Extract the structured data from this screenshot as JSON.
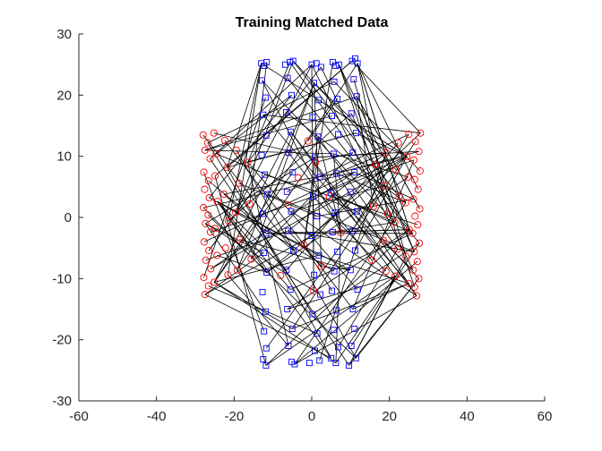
{
  "chart_data": {
    "type": "scatter",
    "title": "Training Matched Data",
    "xlabel": "",
    "ylabel": "",
    "xlim": [
      -60,
      60
    ],
    "ylim": [
      -30,
      30
    ],
    "xticks": [
      -60,
      -40,
      -20,
      0,
      20,
      40,
      60
    ],
    "yticks": [
      -30,
      -20,
      -10,
      0,
      10,
      20,
      30
    ],
    "grid": false,
    "box": "left-bottom axes only",
    "series": [
      {
        "marker": "circle",
        "color": "#ff0000",
        "points": [
          [
            -28,
            13.5
          ],
          [
            -26.8,
            12.2
          ],
          [
            -27.5,
            11.0
          ],
          [
            -26.2,
            9.6
          ],
          [
            -27.8,
            7.4
          ],
          [
            -26.6,
            6.0
          ],
          [
            -27.6,
            4.6
          ],
          [
            -26.4,
            3.2
          ],
          [
            -27.9,
            1.6
          ],
          [
            -26.7,
            0.4
          ],
          [
            -27.4,
            -1.0
          ],
          [
            -26.1,
            -2.4
          ],
          [
            -27.7,
            -4.0
          ],
          [
            -26.5,
            -5.4
          ],
          [
            -27.3,
            -7.0
          ],
          [
            -26.0,
            -8.4
          ],
          [
            -27.8,
            -9.8
          ],
          [
            -26.6,
            -11.2
          ],
          [
            -27.5,
            -12.6
          ],
          [
            -25.2,
            13.8
          ],
          [
            -24.6,
            10.4
          ],
          [
            -24.9,
            6.8
          ],
          [
            -24.3,
            2.6
          ],
          [
            -25.0,
            -1.8
          ],
          [
            -24.4,
            -6.2
          ],
          [
            -25.1,
            -10.6
          ],
          [
            -22.4,
            12.6
          ],
          [
            -21.8,
            8.2
          ],
          [
            -22.6,
            3.8
          ],
          [
            -21.5,
            -0.6
          ],
          [
            -22.2,
            -5.0
          ],
          [
            -21.6,
            -9.4
          ],
          [
            -19.4,
            11.0
          ],
          [
            -18.8,
            5.6
          ],
          [
            -19.6,
            0.8
          ],
          [
            -18.6,
            -3.6
          ],
          [
            -19.2,
            -8.6
          ],
          [
            -16.5,
            9.0
          ],
          [
            -16.0,
            2.2
          ],
          [
            -15.6,
            -6.8
          ],
          [
            28,
            13.8
          ],
          [
            26.7,
            12.4
          ],
          [
            27.6,
            10.8
          ],
          [
            26.3,
            9.4
          ],
          [
            27.9,
            7.6
          ],
          [
            26.5,
            6.2
          ],
          [
            27.4,
            4.6
          ],
          [
            26.2,
            3.0
          ],
          [
            27.8,
            1.4
          ],
          [
            26.6,
            0.2
          ],
          [
            27.3,
            -1.2
          ],
          [
            26.0,
            -2.6
          ],
          [
            27.7,
            -4.2
          ],
          [
            26.4,
            -5.6
          ],
          [
            27.2,
            -7.2
          ],
          [
            26.1,
            -8.6
          ],
          [
            27.6,
            -10.0
          ],
          [
            26.5,
            -11.4
          ],
          [
            27.0,
            -12.8
          ],
          [
            25.0,
            13.6
          ],
          [
            24.5,
            10.0
          ],
          [
            24.8,
            6.6
          ],
          [
            24.2,
            2.4
          ],
          [
            25.1,
            -2.0
          ],
          [
            24.3,
            -6.4
          ],
          [
            25.0,
            -10.8
          ],
          [
            22.3,
            12.2
          ],
          [
            21.7,
            7.8
          ],
          [
            22.5,
            3.4
          ],
          [
            21.4,
            -0.8
          ],
          [
            22.1,
            -5.2
          ],
          [
            21.5,
            -9.6
          ],
          [
            19.2,
            10.6
          ],
          [
            18.7,
            5.2
          ],
          [
            19.5,
            0.6
          ],
          [
            18.5,
            -3.8
          ],
          [
            19.1,
            -8.8
          ],
          [
            16.4,
            8.6
          ],
          [
            15.9,
            1.8
          ],
          [
            15.5,
            -7.0
          ],
          [
            -3.5,
            6.5
          ],
          [
            -2.0,
            -4.5
          ],
          [
            1.0,
            9.0
          ],
          [
            2.5,
            -8.0
          ],
          [
            -6.0,
            2.0
          ],
          [
            4.5,
            3.5
          ],
          [
            -8.0,
            -9.5
          ],
          [
            7.5,
            -2.5
          ],
          [
            -1.0,
            12.5
          ],
          [
            0.5,
            -12.0
          ]
        ]
      },
      {
        "marker": "square",
        "color": "#0000ff",
        "points": [
          [
            -13.0,
            25.2
          ],
          [
            -12.2,
            24.8
          ],
          [
            -11.6,
            25.4
          ],
          [
            -12.8,
            22.4
          ],
          [
            -11.9,
            19.6
          ],
          [
            -12.5,
            16.8
          ],
          [
            -11.7,
            13.4
          ],
          [
            -12.9,
            10.2
          ],
          [
            -12.1,
            7.0
          ],
          [
            -11.5,
            3.8
          ],
          [
            -12.6,
            0.6
          ],
          [
            -11.8,
            -2.6
          ],
          [
            -12.4,
            -5.8
          ],
          [
            -11.6,
            -9.0
          ],
          [
            -12.7,
            -12.2
          ],
          [
            -11.9,
            -15.4
          ],
          [
            -12.3,
            -18.6
          ],
          [
            -11.7,
            -21.4
          ],
          [
            -12.5,
            -23.2
          ],
          [
            -11.8,
            -24.2
          ],
          [
            -6.8,
            25.0
          ],
          [
            -5.6,
            25.4
          ],
          [
            -4.8,
            25.6
          ],
          [
            -6.2,
            22.8
          ],
          [
            -5.2,
            20.0
          ],
          [
            -6.6,
            17.2
          ],
          [
            -5.4,
            14.0
          ],
          [
            -6.0,
            10.6
          ],
          [
            -4.9,
            7.4
          ],
          [
            -6.4,
            4.2
          ],
          [
            -5.3,
            1.0
          ],
          [
            -6.1,
            -2.2
          ],
          [
            -4.7,
            -5.4
          ],
          [
            -6.5,
            -8.6
          ],
          [
            -5.5,
            -11.8
          ],
          [
            -6.3,
            -15.0
          ],
          [
            -5.0,
            -18.2
          ],
          [
            -6.0,
            -21.0
          ],
          [
            -5.2,
            -23.6
          ],
          [
            -4.4,
            -24.0
          ],
          [
            0.0,
            25.0
          ],
          [
            1.2,
            25.2
          ],
          [
            2.4,
            24.6
          ],
          [
            0.6,
            22.0
          ],
          [
            1.8,
            19.2
          ],
          [
            0.2,
            16.4
          ],
          [
            1.6,
            13.2
          ],
          [
            0.8,
            9.8
          ],
          [
            2.0,
            6.6
          ],
          [
            0.4,
            3.4
          ],
          [
            1.4,
            0.2
          ],
          [
            0.0,
            -3.0
          ],
          [
            1.8,
            -6.2
          ],
          [
            0.6,
            -9.4
          ],
          [
            2.2,
            -12.6
          ],
          [
            0.2,
            -15.8
          ],
          [
            1.4,
            -19.0
          ],
          [
            0.8,
            -21.8
          ],
          [
            2.0,
            -23.4
          ],
          [
            -0.6,
            -23.8
          ],
          [
            5.4,
            25.4
          ],
          [
            6.2,
            24.8
          ],
          [
            7.0,
            25.0
          ],
          [
            5.8,
            22.2
          ],
          [
            6.6,
            19.4
          ],
          [
            5.2,
            16.6
          ],
          [
            6.8,
            13.6
          ],
          [
            5.6,
            10.4
          ],
          [
            6.4,
            7.2
          ],
          [
            5.0,
            4.0
          ],
          [
            6.0,
            0.8
          ],
          [
            5.4,
            -2.4
          ],
          [
            6.6,
            -5.6
          ],
          [
            5.8,
            -8.8
          ],
          [
            5.2,
            -12.0
          ],
          [
            6.4,
            -15.2
          ],
          [
            5.6,
            -18.4
          ],
          [
            6.8,
            -21.2
          ],
          [
            5.0,
            -23.0
          ],
          [
            6.2,
            -23.8
          ],
          [
            10.4,
            25.6
          ],
          [
            11.2,
            26.0
          ],
          [
            11.8,
            25.2
          ],
          [
            10.8,
            22.6
          ],
          [
            11.6,
            19.8
          ],
          [
            10.2,
            17.0
          ],
          [
            11.4,
            13.8
          ],
          [
            10.6,
            10.6
          ],
          [
            11.0,
            7.4
          ],
          [
            10.0,
            4.2
          ],
          [
            11.6,
            1.0
          ],
          [
            10.4,
            -2.2
          ],
          [
            11.2,
            -5.4
          ],
          [
            10.0,
            -8.6
          ],
          [
            11.8,
            -11.8
          ],
          [
            10.6,
            -15.0
          ],
          [
            11.0,
            -18.2
          ],
          [
            10.2,
            -21.0
          ],
          [
            11.4,
            -23.0
          ],
          [
            9.6,
            -24.2
          ]
        ]
      }
    ],
    "lines": {
      "color": "#000000",
      "count": 180
    }
  }
}
